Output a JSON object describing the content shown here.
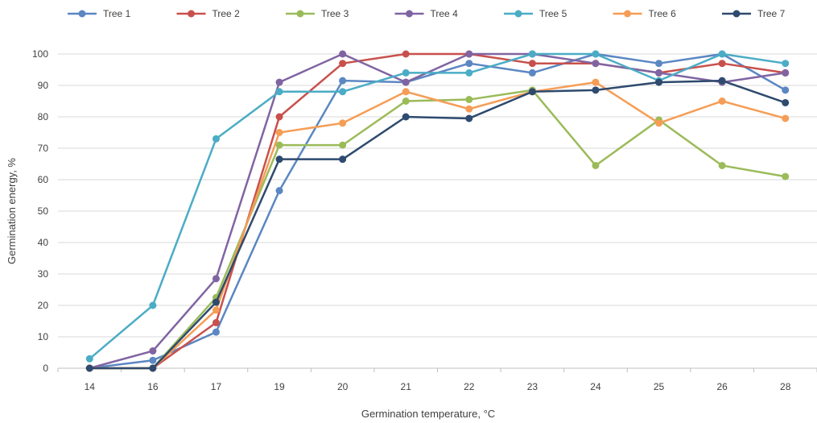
{
  "chart_data": {
    "type": "line",
    "title": "",
    "xlabel": "Germination temperature, °C",
    "ylabel": "Germination energy, %",
    "categories": [
      "14",
      "16",
      "17",
      "19",
      "20",
      "21",
      "22",
      "23",
      "24",
      "25",
      "26",
      "28"
    ],
    "ylim": [
      0,
      100
    ],
    "yticks": [
      0,
      10,
      20,
      30,
      40,
      50,
      60,
      70,
      80,
      90,
      100
    ],
    "grid": true,
    "legend_position": "top",
    "series": [
      {
        "name": "Tree 1",
        "color": "#5b87c2",
        "values": [
          0,
          2.5,
          11.5,
          56.5,
          91.5,
          91,
          97,
          94,
          100,
          97,
          100,
          88.5
        ]
      },
      {
        "name": "Tree 2",
        "color": "#c8504c",
        "values": [
          0,
          0,
          14.5,
          80,
          97,
          100,
          100,
          97,
          97,
          94,
          97,
          94
        ]
      },
      {
        "name": "Tree 3",
        "color": "#9bbb59",
        "values": [
          0,
          0,
          22.5,
          71,
          71,
          85,
          85.5,
          88.5,
          64.5,
          79,
          64.5,
          61
        ]
      },
      {
        "name": "Tree 4",
        "color": "#8064a2",
        "values": [
          0,
          5.5,
          28.5,
          91,
          100,
          91,
          100,
          100,
          97,
          94,
          91,
          94
        ]
      },
      {
        "name": "Tree 5",
        "color": "#4bacc6",
        "values": [
          3,
          20,
          73,
          88,
          88,
          94,
          94,
          100,
          100,
          91.5,
          100,
          97
        ]
      },
      {
        "name": "Tree 6",
        "color": "#f59d56",
        "values": [
          0,
          0,
          18.5,
          75,
          78,
          88,
          82.5,
          88,
          91,
          78,
          85,
          79.5
        ]
      },
      {
        "name": "Tree 7",
        "color": "#2e4a6e",
        "values": [
          0,
          0,
          21,
          66.5,
          66.5,
          80,
          79.5,
          88,
          88.5,
          91,
          91.5,
          84.5
        ]
      }
    ]
  }
}
